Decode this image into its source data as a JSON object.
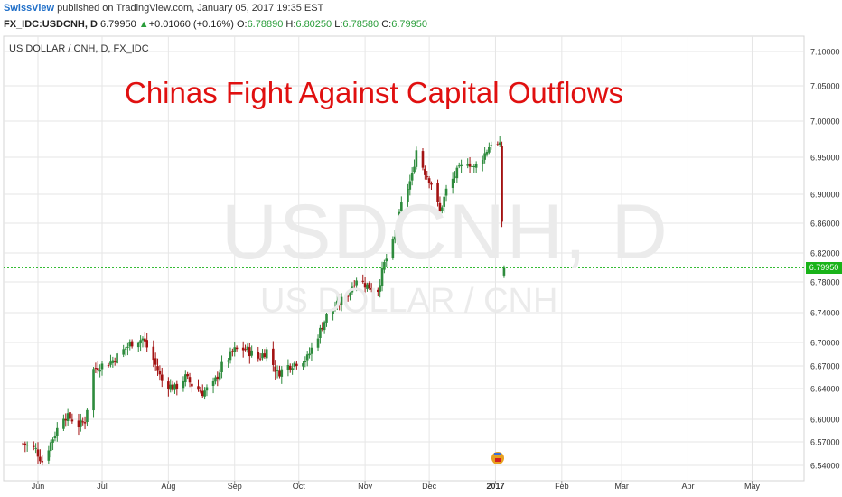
{
  "header": {
    "author": "SwissView",
    "published_text": " published on TradingView.com, January 05, 2017 19:35 EST",
    "symbol": "FX_IDC:USDCNH, D",
    "last": "6.79950",
    "up_arrow": "▲",
    "change": "+0.01060 (+0.16%)",
    "o_label": "O:",
    "o_val": "6.78890",
    "h_label": "H:",
    "h_val": "6.80250",
    "l_label": "L:",
    "l_val": "6.78580",
    "c_label": "C:",
    "c_val": "6.79950"
  },
  "chart_label": "US DOLLAR / CNH, D, FX_IDC",
  "title_overlay": "Chinas Fight Against Capital Outflows",
  "watermark_symbol": "USDCNH, D",
  "watermark_name": "US DOLLAR / CNH",
  "price_tag": "6.79950",
  "colors": {
    "up": "#2e8b3d",
    "down": "#a31212",
    "grid": "#e6e6e6",
    "current_line": "#19b319",
    "title": "#e01010"
  },
  "chart_data": {
    "type": "candlestick",
    "y_ticks": [
      6.54,
      6.57,
      6.6,
      6.64,
      6.67,
      6.7,
      6.74,
      6.78,
      6.82,
      6.86,
      6.9,
      6.95,
      7.0,
      7.05,
      7.1
    ],
    "y_tick_labels": [
      "6.54000",
      "6.57000",
      "6.60000",
      "6.64000",
      "6.67000",
      "6.70000",
      "6.74000",
      "6.78000",
      "6.82000",
      "6.86000",
      "6.90000",
      "6.95000",
      "7.00000",
      "7.05000",
      "7.10000"
    ],
    "x_ticks": [
      "Jun",
      "Jul",
      "Aug",
      "Sep",
      "Oct",
      "Nov",
      "Dec",
      "2017",
      "Feb",
      "Mar",
      "Apr",
      "May"
    ],
    "current_price": 6.7995,
    "ylim": [
      6.525,
      7.12
    ],
    "close_path": [
      [
        "2016-05-25",
        6.568
      ],
      [
        "2016-05-31",
        6.56
      ],
      [
        "2016-06-03",
        6.545
      ],
      [
        "2016-06-08",
        6.575
      ],
      [
        "2016-06-13",
        6.605
      ],
      [
        "2016-06-17",
        6.6
      ],
      [
        "2016-06-20",
        6.592
      ],
      [
        "2016-06-23",
        6.598
      ],
      [
        "2016-06-27",
        6.665
      ],
      [
        "2016-06-30",
        6.67
      ],
      [
        "2016-07-05",
        6.675
      ],
      [
        "2016-07-11",
        6.69
      ],
      [
        "2016-07-15",
        6.7
      ],
      [
        "2016-07-20",
        6.705
      ],
      [
        "2016-07-25",
        6.678
      ],
      [
        "2016-07-29",
        6.65
      ],
      [
        "2016-08-04",
        6.64
      ],
      [
        "2016-08-09",
        6.655
      ],
      [
        "2016-08-12",
        6.645
      ],
      [
        "2016-08-17",
        6.635
      ],
      [
        "2016-08-22",
        6.645
      ],
      [
        "2016-08-26",
        6.67
      ],
      [
        "2016-09-01",
        6.69
      ],
      [
        "2016-09-06",
        6.692
      ],
      [
        "2016-09-12",
        6.68
      ],
      [
        "2016-09-16",
        6.69
      ],
      [
        "2016-09-21",
        6.66
      ],
      [
        "2016-09-26",
        6.67
      ],
      [
        "2016-09-30",
        6.675
      ],
      [
        "2016-10-05",
        6.68
      ],
      [
        "2016-10-10",
        6.71
      ],
      [
        "2016-10-14",
        6.735
      ],
      [
        "2016-10-19",
        6.75
      ],
      [
        "2016-10-24",
        6.765
      ],
      [
        "2016-10-28",
        6.785
      ],
      [
        "2016-11-02",
        6.775
      ],
      [
        "2016-11-07",
        6.77
      ],
      [
        "2016-11-10",
        6.805
      ],
      [
        "2016-11-15",
        6.84
      ],
      [
        "2016-11-18",
        6.885
      ],
      [
        "2016-11-23",
        6.925
      ],
      [
        "2016-11-25",
        6.96
      ],
      [
        "2016-11-29",
        6.93
      ],
      [
        "2016-12-02",
        6.915
      ],
      [
        "2016-12-06",
        6.875
      ],
      [
        "2016-12-09",
        6.905
      ],
      [
        "2016-12-14",
        6.93
      ],
      [
        "2016-12-19",
        6.945
      ],
      [
        "2016-12-22",
        6.935
      ],
      [
        "2016-12-27",
        6.955
      ],
      [
        "2016-12-30",
        6.97
      ],
      [
        "2017-01-03",
        6.965
      ],
      [
        "2017-01-04",
        6.86
      ],
      [
        "2017-01-05",
        6.8
      ]
    ]
  }
}
